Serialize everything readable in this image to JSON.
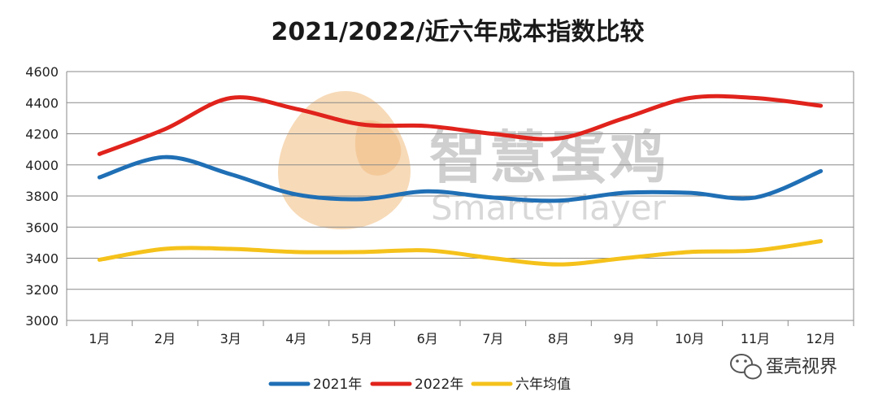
{
  "chart_data": {
    "type": "line",
    "title": "2021/2022/近六年成本指数比较",
    "categories": [
      "1月",
      "2月",
      "3月",
      "4月",
      "5月",
      "6月",
      "7月",
      "8月",
      "9月",
      "10月",
      "11月",
      "12月"
    ],
    "ylim": [
      3000,
      4600
    ],
    "yticks": [
      3000,
      3200,
      3400,
      3600,
      3800,
      4000,
      4200,
      4400,
      4600
    ],
    "grid": true,
    "legend_position": "bottom",
    "series": [
      {
        "name": "2021年",
        "color": "#1f6fb5",
        "values": [
          3920,
          4050,
          3940,
          3810,
          3780,
          3830,
          3790,
          3770,
          3820,
          3820,
          3790,
          3960
        ]
      },
      {
        "name": "2022年",
        "color": "#e0231c",
        "values": [
          4070,
          4230,
          4430,
          4360,
          4260,
          4250,
          4200,
          4170,
          4300,
          4430,
          4430,
          4380
        ]
      },
      {
        "name": "六年均值",
        "color": "#f5c21b",
        "values": [
          3390,
          3460,
          3460,
          3440,
          3440,
          3450,
          3400,
          3360,
          3400,
          3440,
          3450,
          3510
        ]
      }
    ]
  },
  "watermark": {
    "text_cn": "智慧蛋鸡",
    "text_en": "Smarter layer"
  },
  "brand": {
    "text": "蛋壳视界",
    "icon": "wechat-icon"
  }
}
